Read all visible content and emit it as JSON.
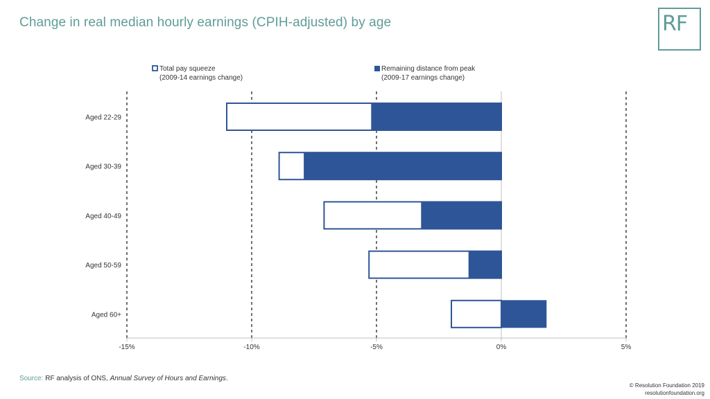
{
  "title": "Change in real median hourly earnings (CPIH-adjusted) by age",
  "logo": "RF",
  "source": {
    "label": "Source:",
    "text_before": "RF analysis of ONS, ",
    "title": "Annual Survey of Hours and Earnings",
    "text_after": "."
  },
  "copyright": {
    "line1": "© Resolution Foundation 2019",
    "line2": "resolutionfoundation.org"
  },
  "colors": {
    "accent": "#5f9c98",
    "series_fill": "#2e5597",
    "outline": "#2e5597"
  },
  "chart_data": {
    "type": "bar",
    "orientation": "horizontal",
    "categories": [
      "Aged 22-29",
      "Aged 30-39",
      "Aged 40-49",
      "Aged 50-59",
      "Aged 60+"
    ],
    "series": [
      {
        "name": "Total pay squeeze",
        "name_line2": "(2009-14 earnings change)",
        "style": "outline",
        "values": [
          -11.0,
          -8.9,
          -7.1,
          -5.3,
          -2.0
        ]
      },
      {
        "name": "Remaining distance from peak",
        "name_line2": "(2009-17 earnings change)",
        "style": "filled",
        "values": [
          -5.2,
          -7.9,
          -3.2,
          -1.3,
          1.8
        ]
      }
    ],
    "xlim": [
      -15,
      5
    ],
    "xticks": [
      -15,
      -10,
      -5,
      0,
      5
    ],
    "xtick_labels": [
      "-15%",
      "-10%",
      "-5%",
      "0%",
      "5%"
    ],
    "vertical_gridlines": "dashed",
    "legend_position": "top"
  }
}
